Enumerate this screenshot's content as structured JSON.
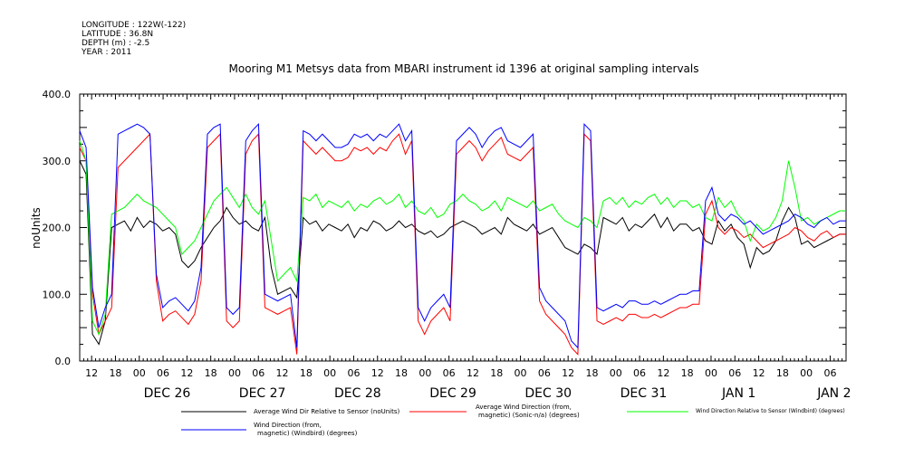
{
  "meta": {
    "longitude": "LONGITUDE : 122W(-122)",
    "latitude": "LATITUDE : 36.8N",
    "depth": "DEPTH (m) : -2.5",
    "year": "YEAR : 2011"
  },
  "chart_data": {
    "type": "line",
    "title": "Mooring M1 Metsys data from MBARI instrument id 1396 at original sampling intervals",
    "ylabel": "noUnits",
    "xlabel": "",
    "ylim": [
      0,
      400
    ],
    "yticks": [
      0,
      100,
      200,
      300,
      400
    ],
    "xlim": [
      "2011-12-25T09:00",
      "2012-01-02T10:00"
    ],
    "hour_labels": [
      "12",
      "18",
      "00",
      "06",
      "12",
      "18",
      "00",
      "06",
      "12",
      "18",
      "00",
      "06",
      "12",
      "18",
      "00",
      "06",
      "12",
      "18",
      "00",
      "06",
      "12",
      "18",
      "00",
      "06",
      "12",
      "18",
      "00",
      "06",
      "12",
      "18",
      "00",
      "06"
    ],
    "day_labels": [
      "DEC 26",
      "DEC 27",
      "DEC 28",
      "DEC 29",
      "DEC 30",
      "DEC 31",
      "JAN  1",
      "JAN  2"
    ],
    "grid": false,
    "legend_position": "bottom",
    "series": [
      {
        "name": "Average Wind Dir Relative to Sensor (noUnits)",
        "color": "#000000",
        "values": [
          300,
          280,
          40,
          25,
          60,
          200,
          205,
          210,
          195,
          215,
          200,
          210,
          205,
          195,
          200,
          190,
          150,
          140,
          150,
          170,
          185,
          200,
          210,
          230,
          215,
          205,
          210,
          200,
          195,
          215,
          140,
          100,
          105,
          110,
          95,
          215,
          205,
          210,
          195,
          205,
          200,
          195,
          205,
          185,
          200,
          195,
          210,
          205,
          195,
          200,
          210,
          200,
          205,
          195,
          190,
          195,
          185,
          190,
          200,
          205,
          210,
          205,
          200,
          190,
          195,
          200,
          190,
          215,
          205,
          200,
          195,
          205,
          190,
          195,
          200,
          185,
          170,
          165,
          160,
          175,
          170,
          160,
          215,
          210,
          205,
          215,
          195,
          205,
          200,
          210,
          220,
          200,
          215,
          195,
          205,
          205,
          195,
          200,
          180,
          175,
          210,
          195,
          205,
          185,
          175,
          140,
          170,
          160,
          165,
          180,
          210,
          230,
          215,
          175,
          180,
          170,
          175,
          180,
          185,
          190,
          190
        ]
      },
      {
        "name": "Average Wind Direction (from, magnetic) (Sonic-n/a) (degrees)",
        "color": "#ff0000",
        "values": [
          320,
          300,
          100,
          40,
          60,
          80,
          290,
          300,
          310,
          320,
          330,
          340,
          120,
          60,
          70,
          75,
          65,
          55,
          70,
          120,
          320,
          330,
          340,
          60,
          50,
          60,
          310,
          330,
          340,
          80,
          75,
          70,
          75,
          80,
          10,
          330,
          320,
          310,
          320,
          310,
          300,
          300,
          305,
          320,
          315,
          320,
          310,
          320,
          315,
          330,
          340,
          310,
          330,
          60,
          40,
          60,
          70,
          80,
          60,
          310,
          320,
          330,
          320,
          300,
          315,
          325,
          335,
          310,
          305,
          300,
          310,
          320,
          90,
          70,
          60,
          50,
          40,
          20,
          10,
          340,
          330,
          60,
          55,
          60,
          65,
          60,
          70,
          70,
          65,
          65,
          70,
          65,
          70,
          75,
          80,
          80,
          85,
          85,
          220,
          240,
          200,
          190,
          200,
          195,
          185,
          190,
          180,
          170,
          175,
          180,
          185,
          190,
          200,
          195,
          185,
          180,
          190,
          195,
          185,
          190,
          190
        ]
      },
      {
        "name": "Wind Direction Relative to Sensor (Windbird) (degrees)",
        "color": "#00ff00",
        "values": [
          330,
          300,
          60,
          40,
          70,
          220,
          225,
          230,
          240,
          250,
          240,
          235,
          230,
          220,
          210,
          200,
          160,
          170,
          180,
          200,
          220,
          240,
          250,
          260,
          245,
          230,
          250,
          230,
          220,
          240,
          180,
          120,
          130,
          140,
          120,
          245,
          240,
          250,
          230,
          240,
          235,
          230,
          240,
          225,
          235,
          230,
          240,
          245,
          235,
          240,
          250,
          230,
          240,
          225,
          220,
          230,
          215,
          220,
          235,
          240,
          250,
          240,
          235,
          225,
          230,
          240,
          225,
          245,
          240,
          235,
          230,
          240,
          225,
          230,
          235,
          220,
          210,
          205,
          200,
          215,
          210,
          200,
          240,
          245,
          235,
          245,
          230,
          240,
          235,
          245,
          250,
          235,
          245,
          230,
          240,
          240,
          230,
          235,
          215,
          210,
          245,
          230,
          240,
          220,
          210,
          180,
          205,
          195,
          200,
          215,
          240,
          300,
          260,
          210,
          215,
          205,
          210,
          215,
          220,
          225,
          225
        ]
      },
      {
        "name": "Wind Direction (from, magnetic) (Windbird) (degrees)",
        "color": "#0000ff",
        "values": [
          345,
          320,
          110,
          50,
          80,
          100,
          340,
          345,
          350,
          355,
          350,
          340,
          130,
          80,
          90,
          95,
          85,
          75,
          90,
          140,
          340,
          350,
          355,
          80,
          70,
          80,
          330,
          345,
          355,
          100,
          95,
          90,
          95,
          100,
          20,
          345,
          340,
          330,
          340,
          330,
          320,
          320,
          325,
          340,
          335,
          340,
          330,
          340,
          335,
          345,
          355,
          330,
          345,
          80,
          60,
          80,
          90,
          100,
          80,
          330,
          340,
          350,
          340,
          320,
          335,
          345,
          350,
          330,
          325,
          320,
          330,
          340,
          110,
          90,
          80,
          70,
          60,
          30,
          20,
          355,
          345,
          80,
          75,
          80,
          85,
          80,
          90,
          90,
          85,
          85,
          90,
          85,
          90,
          95,
          100,
          100,
          105,
          105,
          240,
          260,
          220,
          210,
          220,
          215,
          205,
          210,
          200,
          190,
          195,
          200,
          205,
          210,
          220,
          215,
          205,
          200,
          210,
          215,
          205,
          210,
          210
        ]
      }
    ]
  }
}
